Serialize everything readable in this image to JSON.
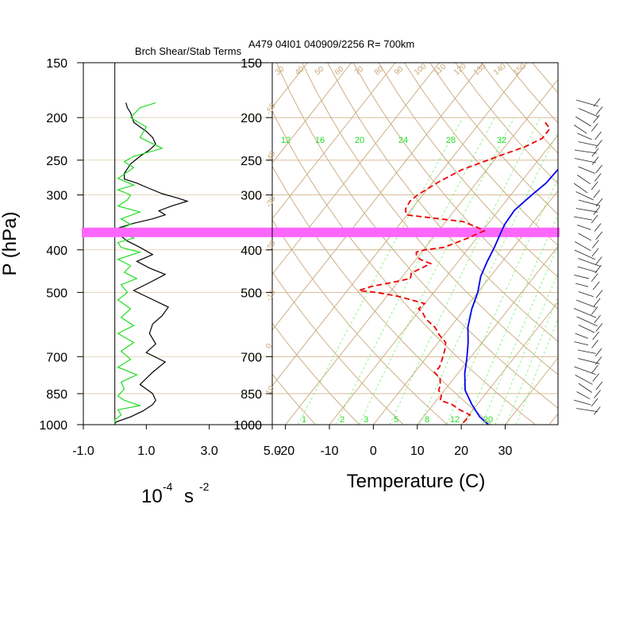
{
  "chart_data": [
    {
      "type": "line",
      "panel": "shear-stability",
      "title": "Brch Shear/Stab Terms",
      "ylabel": "P (hPa)",
      "xlabel_base": "10",
      "xlabel_exp": "-4",
      "xlabel_unit": "s",
      "xlabel_unit_exp": "-2",
      "xlim": [
        -1.0,
        5.0
      ],
      "ylim": [
        1000,
        150
      ],
      "y_scale": "log",
      "x_ticks": [
        "-1.0",
        "1.0",
        "3.0",
        "5.0"
      ],
      "y_ticks": [
        "150",
        "200",
        "250",
        "300",
        "400",
        "500",
        "700",
        "850",
        "1000"
      ],
      "zero_line": 0,
      "series": [
        {
          "color": "#000000",
          "points": [
            [
              0.35,
              185
            ],
            [
              0.4,
              190
            ],
            [
              0.5,
              195
            ],
            [
              0.55,
              200
            ],
            [
              0.6,
              205
            ],
            [
              0.8,
              210
            ],
            [
              1.0,
              215
            ],
            [
              1.2,
              222
            ],
            [
              1.3,
              230
            ],
            [
              1.1,
              237
            ],
            [
              0.8,
              245
            ],
            [
              0.5,
              255
            ],
            [
              0.3,
              268
            ],
            [
              0.3,
              276
            ],
            [
              0.7,
              282
            ],
            [
              1.1,
              290
            ],
            [
              1.5,
              298
            ],
            [
              2.0,
              305
            ],
            [
              2.3,
              310
            ],
            [
              1.8,
              318
            ],
            [
              1.4,
              326
            ],
            [
              1.6,
              333
            ],
            [
              1.2,
              340
            ],
            [
              0.6,
              348
            ],
            [
              0.15,
              356
            ],
            [
              0.0,
              362
            ],
            [
              0.15,
              370
            ],
            [
              0.4,
              382
            ],
            [
              0.8,
              395
            ],
            [
              1.2,
              410
            ],
            [
              0.7,
              425
            ],
            [
              1.1,
              440
            ],
            [
              1.6,
              455
            ],
            [
              1.1,
              475
            ],
            [
              0.6,
              495
            ],
            [
              1.1,
              515
            ],
            [
              1.7,
              540
            ],
            [
              1.5,
              565
            ],
            [
              1.2,
              590
            ],
            [
              1.1,
              620
            ],
            [
              1.3,
              655
            ],
            [
              1.0,
              685
            ],
            [
              1.6,
              720
            ],
            [
              1.2,
              760
            ],
            [
              0.8,
              810
            ],
            [
              1.2,
              850
            ],
            [
              1.3,
              880
            ],
            [
              1.2,
              900
            ],
            [
              0.9,
              930
            ],
            [
              0.5,
              960
            ],
            [
              0.05,
              985
            ],
            [
              0.0,
              995
            ]
          ]
        },
        {
          "color": "#22dd22",
          "points": [
            [
              1.3,
              185
            ],
            [
              0.8,
              190
            ],
            [
              0.5,
              200
            ],
            [
              1.0,
              210
            ],
            [
              0.8,
              222
            ],
            [
              1.5,
              235
            ],
            [
              0.6,
              245
            ],
            [
              0.3,
              252
            ],
            [
              0.6,
              260
            ],
            [
              0.1,
              275
            ],
            [
              0.6,
              285
            ],
            [
              0.1,
              292
            ],
            [
              0.5,
              300
            ],
            [
              0.4,
              308
            ],
            [
              0.1,
              318
            ],
            [
              0.8,
              328
            ],
            [
              0.2,
              340
            ],
            [
              0.5,
              350
            ],
            [
              0.1,
              360
            ],
            [
              0.3,
              368
            ],
            [
              0.6,
              376
            ],
            [
              0.1,
              385
            ],
            [
              0.2,
              395
            ],
            [
              0.8,
              405
            ],
            [
              0.1,
              420
            ],
            [
              0.5,
              435
            ],
            [
              0.3,
              450
            ],
            [
              0.7,
              465
            ],
            [
              0.2,
              480
            ],
            [
              0.4,
              500
            ],
            [
              0.1,
              520
            ],
            [
              0.5,
              545
            ],
            [
              0.2,
              570
            ],
            [
              0.6,
              595
            ],
            [
              0.1,
              620
            ],
            [
              0.6,
              650
            ],
            [
              0.2,
              680
            ],
            [
              0.5,
              710
            ],
            [
              0.1,
              740
            ],
            [
              0.7,
              770
            ],
            [
              0.2,
              800
            ],
            [
              0.3,
              830
            ],
            [
              0.1,
              860
            ],
            [
              0.3,
              880
            ],
            [
              0.8,
              905
            ],
            [
              0.1,
              925
            ],
            [
              0.2,
              950
            ],
            [
              0.0,
              975
            ],
            [
              0.0,
              995
            ]
          ]
        }
      ]
    },
    {
      "type": "line",
      "panel": "skew-t",
      "title": "A479 04I01 040909/2256 R= 700km",
      "xlabel": "Temperature (C)",
      "ylabel": "",
      "xlim": [
        -23,
        42
      ],
      "ylim": [
        1000,
        150
      ],
      "y_scale": "log",
      "skew": "log-p",
      "x_ticks": [
        "-20",
        "-10",
        "0",
        "10",
        "20",
        "30"
      ],
      "y_ticks": [
        "150",
        "200",
        "250",
        "300",
        "400",
        "500",
        "700",
        "850",
        "1000"
      ],
      "highlight_pressure": 365,
      "highlight_color": "#ff66ff",
      "theta_labels": [
        "30",
        "40",
        "50",
        "60",
        "70",
        "80",
        "90",
        "100",
        "110",
        "120",
        "130",
        "140",
        "150"
      ],
      "isotherm_labels": [
        "-50",
        "-40",
        "-30",
        "-20",
        "-10",
        "0",
        "10",
        "20",
        "30"
      ],
      "mixing_ratio_labels_top": [
        "12",
        "16",
        "20",
        "24",
        "28",
        "32"
      ],
      "mixing_ratio_labels_bottom": [
        "1",
        "2",
        "3",
        "5",
        "8",
        "12",
        "20"
      ],
      "series": [
        {
          "color": "#0000ee",
          "style": "solid",
          "points": [
            [
              -2.8,
              180
            ],
            [
              -2.8,
              200
            ],
            [
              -3.1,
              222
            ],
            [
              -3.7,
              255
            ],
            [
              -4.1,
              282
            ],
            [
              -5.2,
              300
            ],
            [
              -6.4,
              325
            ],
            [
              -6.1,
              350
            ],
            [
              -5.3,
              370
            ],
            [
              -4.3,
              395
            ],
            [
              -3.4,
              425
            ],
            [
              -2.2,
              460
            ],
            [
              0.0,
              500
            ],
            [
              1.6,
              545
            ],
            [
              4.0,
              600
            ],
            [
              6.8,
              650
            ],
            [
              9.3,
              705
            ],
            [
              11.6,
              765
            ],
            [
              14.7,
              835
            ],
            [
              18.8,
              900
            ],
            [
              22.8,
              960
            ],
            [
              24.9,
              985
            ],
            [
              26.2,
              1000
            ]
          ]
        },
        {
          "color": "#ee0000",
          "style": "dashed",
          "points": [
            [
              -15.2,
              205
            ],
            [
              -13.0,
              212
            ],
            [
              -13.0,
              223
            ],
            [
              -15.4,
              233
            ],
            [
              -19.8,
              245
            ],
            [
              -25.7,
              263
            ],
            [
              -28.7,
              280
            ],
            [
              -31.2,
              300
            ],
            [
              -31.8,
              310
            ],
            [
              -31.4,
              323
            ],
            [
              -30.2,
              333
            ],
            [
              -16.0,
              345
            ],
            [
              -12.0,
              355
            ],
            [
              -9.6,
              362
            ],
            [
              -11.8,
              375
            ],
            [
              -13.8,
              385
            ],
            [
              -15.8,
              395
            ],
            [
              -19.7,
              400
            ],
            [
              -21.2,
              405
            ],
            [
              -20.6,
              412
            ],
            [
              -19.2,
              420
            ],
            [
              -15.9,
              430
            ],
            [
              -17.4,
              442
            ],
            [
              -18.6,
              452
            ],
            [
              -17.8,
              465
            ],
            [
              -21.5,
              475
            ],
            [
              -25.4,
              485
            ],
            [
              -27.4,
              495
            ],
            [
              -23.0,
              500
            ],
            [
              -17.5,
              510
            ],
            [
              -10.1,
              530
            ],
            [
              -10.5,
              545
            ],
            [
              -9.0,
              555
            ],
            [
              -7.0,
              575
            ],
            [
              -3.5,
              600
            ],
            [
              -1.1,
              625
            ],
            [
              1.7,
              650
            ],
            [
              2.8,
              675
            ],
            [
              3.6,
              700
            ],
            [
              4.2,
              720
            ],
            [
              4.7,
              740
            ],
            [
              4.5,
              760
            ],
            [
              6.9,
              785
            ],
            [
              8.0,
              810
            ],
            [
              8.7,
              835
            ],
            [
              10.3,
              860
            ],
            [
              10.8,
              880
            ],
            [
              14.3,
              900
            ],
            [
              17.0,
              925
            ],
            [
              20.2,
              950
            ],
            [
              20.2,
              975
            ],
            [
              20.0,
              1000
            ]
          ]
        }
      ]
    }
  ],
  "wind_barbs": "present"
}
